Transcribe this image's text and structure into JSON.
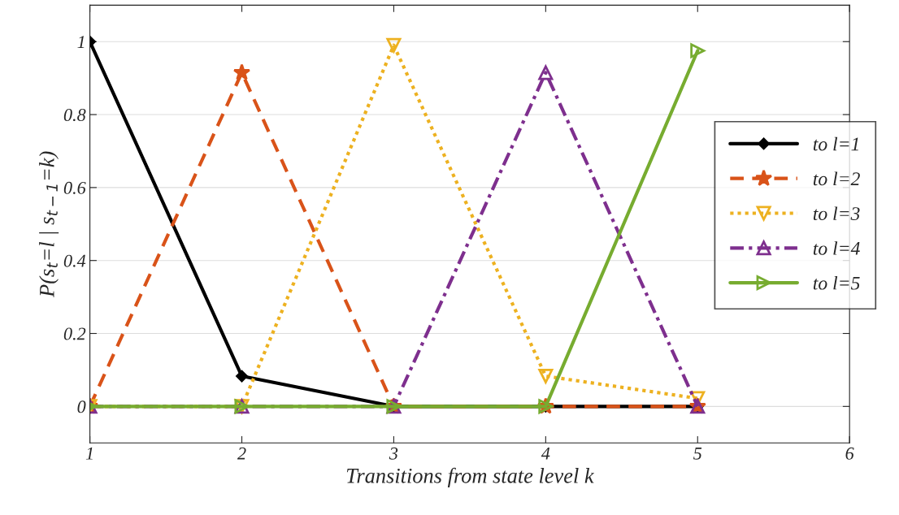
{
  "chart_data": {
    "type": "line",
    "xlabel": "Transitions from state level k",
    "ylabel": "P(s$_{t}$=l | s$_{t−1}$=k)",
    "x": [
      1,
      2,
      3,
      4,
      5
    ],
    "series": [
      {
        "name": "to l=1",
        "color": "#000000",
        "values": [
          1,
          0.083,
          0,
          0,
          0
        ],
        "marker": "diamond",
        "line_style": "solid"
      },
      {
        "name": "to l=2",
        "color": "#d95319",
        "values": [
          0,
          0.915,
          0,
          0,
          0
        ],
        "marker": "star",
        "line_style": "dashed"
      },
      {
        "name": "to l=3",
        "color": "#edb120",
        "values": [
          0,
          0,
          0.99,
          0.083,
          0.022
        ],
        "marker": "triangle_down",
        "line_style": "dotted"
      },
      {
        "name": "to l=4",
        "color": "#7e2f8e",
        "values": [
          0,
          0,
          0,
          0.915,
          0
        ],
        "marker": "triangle",
        "line_style": "dashdot"
      },
      {
        "name": "to l=5",
        "color": "#77ac30",
        "values": [
          0,
          0,
          0,
          0,
          0.975
        ],
        "marker": "triangle_right",
        "line_style": "solid"
      }
    ],
    "xlim": [
      1,
      6
    ],
    "xticks": [
      1,
      2,
      3,
      4,
      5,
      6
    ],
    "ylim": [
      -0.1,
      1.1
    ],
    "yticks": [
      0,
      0.2,
      0.4,
      0.6,
      0.8,
      1
    ],
    "grid": "y",
    "legend": "right"
  }
}
